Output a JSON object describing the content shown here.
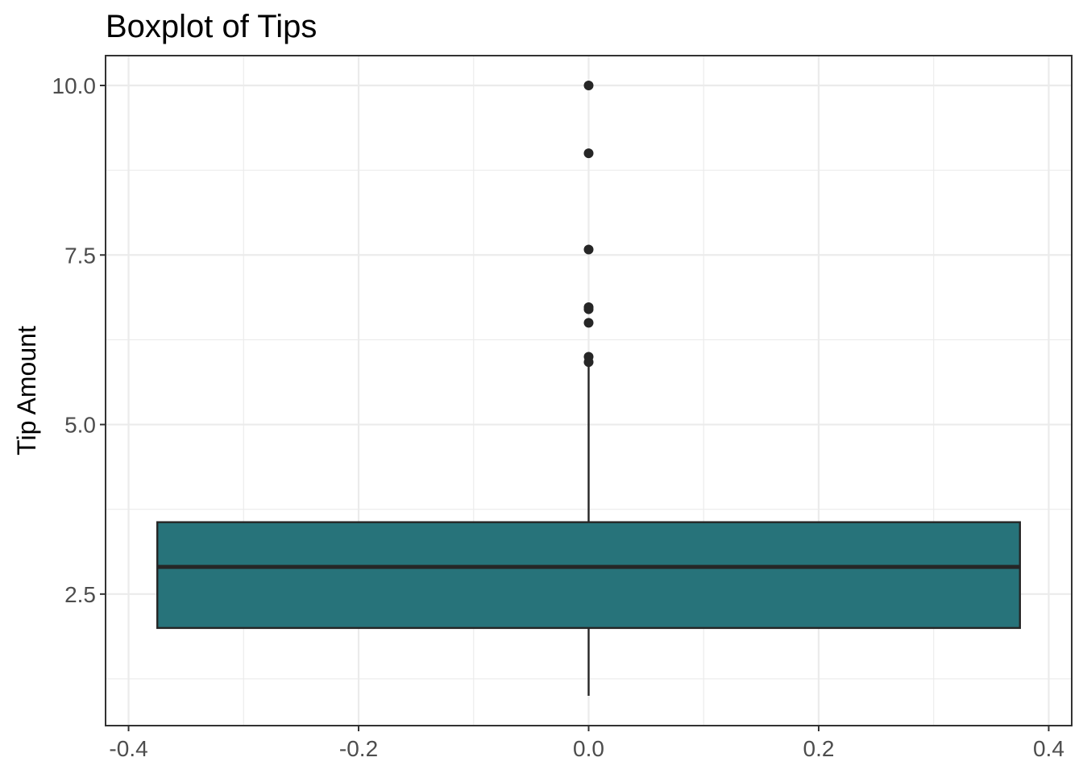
{
  "chart_data": {
    "type": "boxplot",
    "title": "Boxplot of Tips",
    "xlabel": "",
    "ylabel": "Tip Amount",
    "xlim": [
      -0.42,
      0.42
    ],
    "ylim": [
      0.56,
      10.44
    ],
    "x_ticks": [
      -0.4,
      -0.2,
      0.0,
      0.2,
      0.4
    ],
    "x_tick_labels": [
      "-0.4",
      "-0.2",
      "0.0",
      "0.2",
      "0.4"
    ],
    "y_ticks": [
      2.5,
      5.0,
      7.5,
      10.0
    ],
    "y_tick_labels": [
      "2.5",
      "5.0",
      "7.5",
      "10.0"
    ],
    "grid": true,
    "box": {
      "x_center": 0.0,
      "x_min": -0.375,
      "x_max": 0.375,
      "whisker_low": 1.0,
      "q1": 2.0,
      "median": 2.9,
      "q3": 3.56,
      "whisker_high": 5.92,
      "fill": "#27737a",
      "outliers": [
        10.0,
        9.0,
        7.58,
        6.73,
        6.7,
        6.5,
        6.0,
        5.92
      ]
    }
  }
}
